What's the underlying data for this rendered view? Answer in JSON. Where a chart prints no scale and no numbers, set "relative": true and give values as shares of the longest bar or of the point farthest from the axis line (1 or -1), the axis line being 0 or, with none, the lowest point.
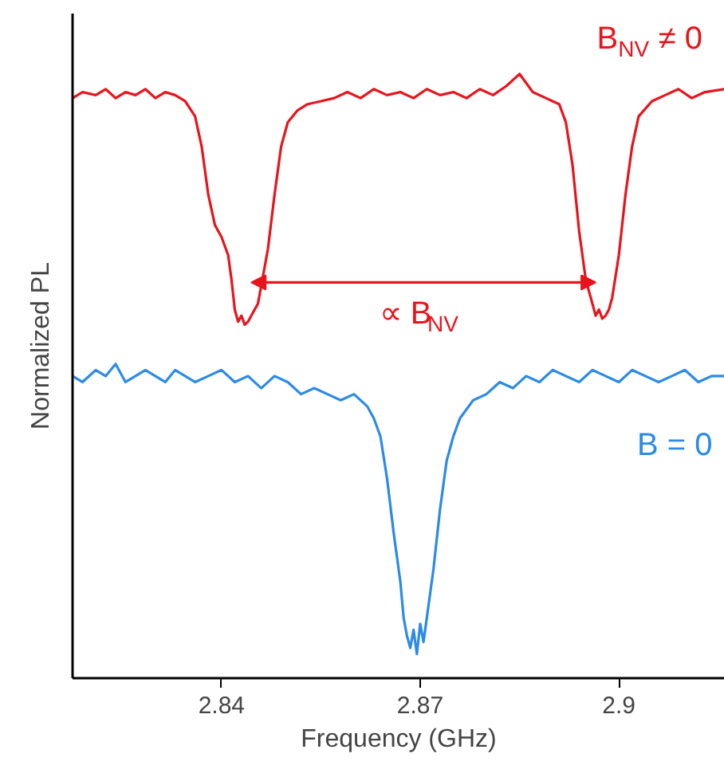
{
  "chart_data": {
    "type": "line",
    "xlabel": "Frequency (GHz)",
    "ylabel": "Normalized PL",
    "relative": true,
    "xlim": [
      2.8175,
      2.916
    ],
    "xticks": [
      2.84,
      2.87,
      2.9
    ],
    "tick_labels": "x",
    "grid": false,
    "legend": false,
    "marker": "none",
    "line_style": "solid",
    "series": [
      {
        "name": "B$_{NV}$ ≠ 0",
        "color": "#e8141c",
        "x": [
          2.8175,
          2.819,
          2.821,
          2.8225,
          2.824,
          2.8255,
          2.827,
          2.8285,
          2.83,
          2.8315,
          2.833,
          2.8345,
          2.836,
          2.837,
          2.838,
          2.839,
          2.84,
          2.841,
          2.8415,
          2.842,
          2.8425,
          2.843,
          2.8435,
          2.844,
          2.8445,
          2.845,
          2.8455,
          2.846,
          2.847,
          2.848,
          2.849,
          2.85,
          2.8515,
          2.853,
          2.855,
          2.857,
          2.859,
          2.861,
          2.863,
          2.865,
          2.867,
          2.869,
          2.871,
          2.873,
          2.875,
          2.877,
          2.879,
          2.881,
          2.883,
          2.885,
          2.887,
          2.889,
          2.89,
          2.891,
          2.892,
          2.893,
          2.894,
          2.895,
          2.896,
          2.8965,
          2.897,
          2.8975,
          2.898,
          2.8985,
          2.899,
          2.9,
          2.901,
          2.902,
          2.903,
          2.905,
          2.907,
          2.909,
          2.911,
          2.913,
          2.916
        ],
        "values": [
          0.96,
          0.97,
          0.965,
          0.975,
          0.96,
          0.97,
          0.965,
          0.975,
          0.96,
          0.97,
          0.965,
          0.955,
          0.93,
          0.88,
          0.8,
          0.75,
          0.73,
          0.7,
          0.66,
          0.61,
          0.59,
          0.6,
          0.585,
          0.59,
          0.6,
          0.61,
          0.62,
          0.65,
          0.71,
          0.8,
          0.88,
          0.92,
          0.94,
          0.95,
          0.955,
          0.96,
          0.97,
          0.96,
          0.975,
          0.965,
          0.97,
          0.96,
          0.975,
          0.965,
          0.97,
          0.96,
          0.975,
          0.965,
          0.98,
          1.0,
          0.97,
          0.96,
          0.955,
          0.95,
          0.92,
          0.85,
          0.74,
          0.66,
          0.62,
          0.6,
          0.61,
          0.595,
          0.6,
          0.61,
          0.63,
          0.7,
          0.8,
          0.88,
          0.93,
          0.955,
          0.965,
          0.975,
          0.96,
          0.97,
          0.975
        ]
      },
      {
        "name": "B = 0",
        "color": "#2b8be6",
        "x": [
          2.8175,
          2.819,
          2.821,
          2.8225,
          2.824,
          2.8255,
          2.827,
          2.8285,
          2.83,
          2.8315,
          2.833,
          2.8345,
          2.836,
          2.838,
          2.84,
          2.842,
          2.844,
          2.846,
          2.848,
          2.85,
          2.852,
          2.854,
          2.856,
          2.858,
          2.86,
          2.862,
          2.863,
          2.864,
          2.865,
          2.866,
          2.867,
          2.8675,
          2.868,
          2.8685,
          2.869,
          2.8695,
          2.87,
          2.8705,
          2.871,
          2.872,
          2.873,
          2.874,
          2.875,
          2.876,
          2.878,
          2.88,
          2.882,
          2.884,
          2.886,
          2.888,
          2.89,
          2.892,
          2.894,
          2.896,
          2.898,
          2.9,
          2.902,
          2.904,
          2.906,
          2.908,
          2.91,
          2.912,
          2.914,
          2.916
        ],
        "values": [
          0.5,
          0.49,
          0.51,
          0.5,
          0.52,
          0.49,
          0.5,
          0.51,
          0.5,
          0.49,
          0.51,
          0.5,
          0.49,
          0.5,
          0.51,
          0.49,
          0.5,
          0.48,
          0.5,
          0.49,
          0.47,
          0.48,
          0.47,
          0.46,
          0.47,
          0.45,
          0.43,
          0.4,
          0.33,
          0.24,
          0.16,
          0.1,
          0.07,
          0.05,
          0.08,
          0.04,
          0.09,
          0.06,
          0.1,
          0.18,
          0.28,
          0.36,
          0.4,
          0.43,
          0.46,
          0.47,
          0.49,
          0.48,
          0.5,
          0.49,
          0.51,
          0.5,
          0.49,
          0.51,
          0.5,
          0.49,
          0.51,
          0.5,
          0.49,
          0.5,
          0.51,
          0.49,
          0.5,
          0.5
        ]
      }
    ],
    "annotations": [
      "∝ B$_{NV}$"
    ]
  }
}
